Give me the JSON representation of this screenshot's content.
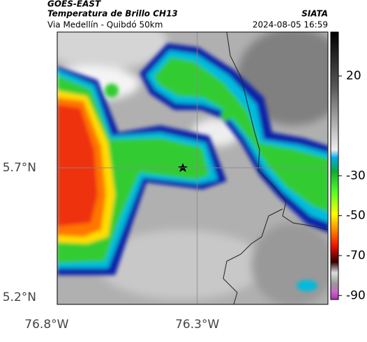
{
  "header": {
    "source": "GOES-EAST",
    "product": "Temperatura de Brillo CH13",
    "route": "Via Medellín - Quibdó 50km",
    "org": "SIATA",
    "datetime": "2024-08-05 16:59"
  },
  "map": {
    "lon_lim": [
      -76.765,
      -75.866
    ],
    "lat_lim": [
      5.173,
      6.224
    ],
    "lon_ticks": [
      {
        "value": -76.8,
        "label": "76.8°W"
      },
      {
        "value": -76.3,
        "label": "76.3°W"
      }
    ],
    "lat_ticks": [
      {
        "value": 5.7,
        "label": "5.7°N"
      },
      {
        "value": 5.2,
        "label": "5.2°N"
      }
    ],
    "grid": true
  },
  "colorbar": {
    "lim": [
      -92,
      42
    ],
    "ticks": [
      20,
      -30,
      -50,
      -70,
      -90
    ]
  }
}
